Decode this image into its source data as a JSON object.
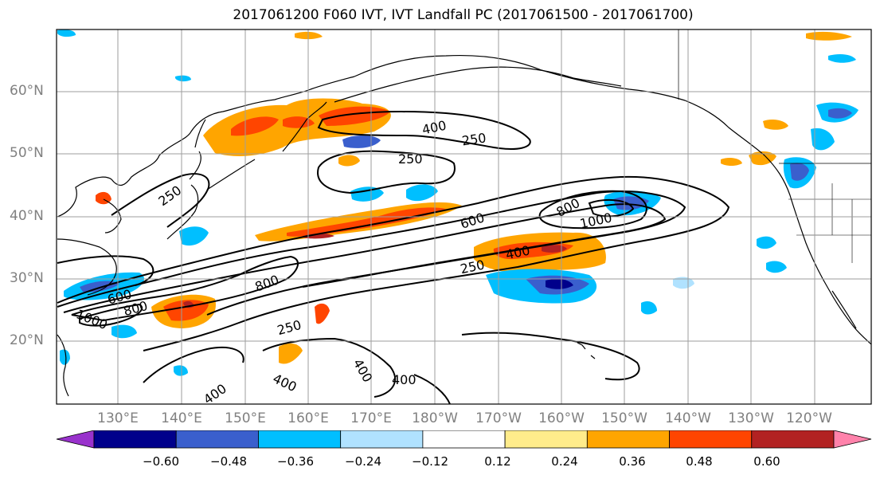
{
  "title": "2017061200 F060 IVT, IVT Landfall PC (2017061500 - 2017061700)",
  "lat_labels": [
    "60°N",
    "50°N",
    "40°N",
    "30°N",
    "20°N"
  ],
  "lon_labels": [
    "130°E",
    "140°E",
    "150°E",
    "160°E",
    "170°E",
    "180°W",
    "170°W",
    "160°W",
    "150°W",
    "140°W",
    "130°W",
    "120°W"
  ],
  "contour_labels": [
    "400",
    "250",
    "250",
    "250",
    "600",
    "800",
    "1000",
    "400",
    "250",
    "600",
    "800",
    "800",
    "1000",
    "250",
    "400",
    "400",
    "400",
    "400"
  ],
  "colorbar": {
    "tick_labels": [
      "−0.60",
      "−0.48",
      "−0.36",
      "−0.24",
      "−0.12",
      "0.12",
      "0.24",
      "0.36",
      "0.48",
      "0.60"
    ],
    "colors": [
      "#9932cc",
      "#00008b",
      "#3a5fcd",
      "#00bfff",
      "#b0e2ff",
      "#ffffff",
      "#ffec8b",
      "#ffa500",
      "#ff4500",
      "#b22222",
      "#ff82ab"
    ]
  },
  "chart_data": {
    "type": "contour-map",
    "lat_range": [
      "10°N",
      "70°N"
    ],
    "lon_range": [
      "120°E",
      "105°W"
    ],
    "contour_levels": [
      250,
      400,
      600,
      800,
      1000
    ],
    "shading_levels": [
      -0.6,
      -0.48,
      -0.36,
      -0.24,
      -0.12,
      0.12,
      0.24,
      0.36,
      0.48,
      0.6
    ]
  }
}
